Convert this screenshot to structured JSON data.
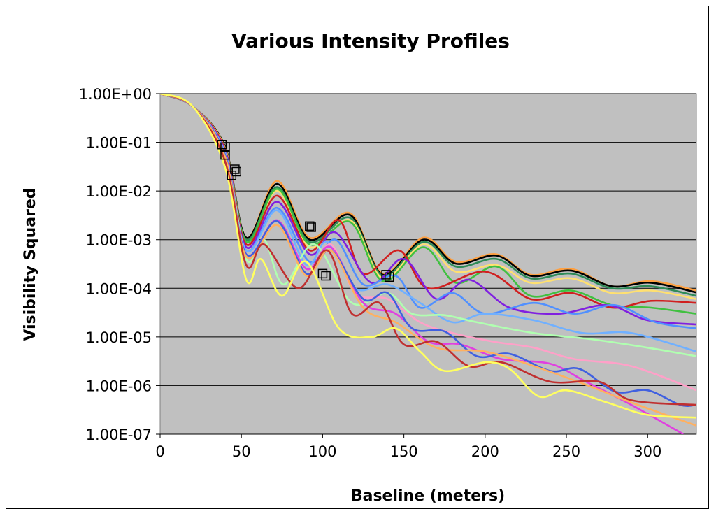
{
  "chart_data": {
    "type": "line",
    "title": "Various Intensity Profiles",
    "xlabel": "Baseline (meters)",
    "ylabel": "Visibility Squared",
    "xlim": [
      0,
      330
    ],
    "ylim": [
      1e-07,
      1
    ],
    "y_scale": "log",
    "grid": "horizontal",
    "legend": "none",
    "plot_background": "#c0c0c0",
    "x_ticks": [
      "0",
      "50",
      "100",
      "150",
      "200",
      "250",
      "300"
    ],
    "x_tick_values": [
      0,
      50,
      100,
      150,
      200,
      250,
      300
    ],
    "y_ticks": [
      "1.00E+00",
      "1.00E-01",
      "1.00E-02",
      "1.00E-03",
      "1.00E-04",
      "1.00E-05",
      "1.00E-06",
      "1.00E-07"
    ],
    "y_tick_values": [
      1,
      0.1,
      0.01,
      0.001,
      0.0001,
      1e-05,
      1e-06,
      1e-07
    ],
    "series": [
      {
        "color": "#ffa040",
        "points": [
          [
            0,
            1
          ],
          [
            20,
            0.55
          ],
          [
            40,
            0.08
          ],
          [
            53,
            0.0011
          ],
          [
            72,
            0.016
          ],
          [
            92,
            0.0011
          ],
          [
            117,
            0.0035
          ],
          [
            137,
            0.0002
          ],
          [
            162,
            0.0011
          ],
          [
            182,
            0.00035
          ],
          [
            207,
            0.0005
          ],
          [
            228,
            0.00019
          ],
          [
            253,
            0.00025
          ],
          [
            278,
            0.00011
          ],
          [
            302,
            0.00014
          ],
          [
            330,
            9e-05
          ]
        ]
      },
      {
        "color": "#000000",
        "points": [
          [
            0,
            1
          ],
          [
            20,
            0.55
          ],
          [
            40,
            0.08
          ],
          [
            53,
            0.0011
          ],
          [
            72,
            0.014
          ],
          [
            92,
            0.001
          ],
          [
            117,
            0.0032
          ],
          [
            137,
            0.00019
          ],
          [
            162,
            0.001
          ],
          [
            182,
            0.00032
          ],
          [
            207,
            0.00047
          ],
          [
            228,
            0.00018
          ],
          [
            253,
            0.00023
          ],
          [
            278,
            0.00011
          ],
          [
            302,
            0.00013
          ],
          [
            330,
            8.2e-05
          ]
        ]
      },
      {
        "color": "#2e8b57",
        "points": [
          [
            0,
            1
          ],
          [
            20,
            0.55
          ],
          [
            40,
            0.075
          ],
          [
            53,
            0.001
          ],
          [
            72,
            0.012
          ],
          [
            92,
            0.0009
          ],
          [
            117,
            0.0028
          ],
          [
            137,
            0.00018
          ],
          [
            162,
            0.0009
          ],
          [
            182,
            0.00028
          ],
          [
            207,
            0.0004
          ],
          [
            228,
            0.00016
          ],
          [
            253,
            0.0002
          ],
          [
            278,
            0.0001
          ],
          [
            302,
            0.00011
          ],
          [
            330,
            7e-05
          ]
        ]
      },
      {
        "color": "#ffe070",
        "points": [
          [
            0,
            1
          ],
          [
            20,
            0.55
          ],
          [
            40,
            0.075
          ],
          [
            53,
            0.0009
          ],
          [
            72,
            0.01
          ],
          [
            92,
            0.0007
          ],
          [
            117,
            0.0025
          ],
          [
            137,
            0.00016
          ],
          [
            162,
            0.0008
          ],
          [
            182,
            0.00022
          ],
          [
            207,
            0.0003
          ],
          [
            228,
            0.00013
          ],
          [
            253,
            0.00016
          ],
          [
            278,
            8e-05
          ],
          [
            302,
            9e-05
          ],
          [
            330,
            6e-05
          ]
        ]
      },
      {
        "color": "#40c040",
        "points": [
          [
            0,
            1
          ],
          [
            20,
            0.55
          ],
          [
            40,
            0.07
          ],
          [
            53,
            0.0009
          ],
          [
            72,
            0.011
          ],
          [
            92,
            0.0008
          ],
          [
            117,
            0.0023
          ],
          [
            137,
            0.00014
          ],
          [
            162,
            0.0007
          ],
          [
            182,
            0.00013
          ],
          [
            207,
            0.00028
          ],
          [
            228,
            7e-05
          ],
          [
            253,
            9e-05
          ],
          [
            278,
            4.5e-05
          ],
          [
            302,
            4e-05
          ],
          [
            330,
            3e-05
          ]
        ]
      },
      {
        "color": "#d02020",
        "points": [
          [
            0,
            1
          ],
          [
            20,
            0.55
          ],
          [
            40,
            0.07
          ],
          [
            53,
            0.0008
          ],
          [
            72,
            0.008
          ],
          [
            92,
            0.0006
          ],
          [
            110,
            0.0025
          ],
          [
            125,
            0.0002
          ],
          [
            147,
            0.0006
          ],
          [
            165,
            0.0001
          ],
          [
            200,
            0.00022
          ],
          [
            228,
            6e-05
          ],
          [
            253,
            8e-05
          ],
          [
            278,
            4e-05
          ],
          [
            302,
            5.5e-05
          ],
          [
            330,
            5e-05
          ]
        ]
      },
      {
        "color": "#8020e0",
        "points": [
          [
            0,
            1
          ],
          [
            20,
            0.55
          ],
          [
            40,
            0.065
          ],
          [
            53,
            0.0007
          ],
          [
            72,
            0.006
          ],
          [
            92,
            0.0005
          ],
          [
            108,
            0.0014
          ],
          [
            130,
            0.00013
          ],
          [
            150,
            0.0004
          ],
          [
            170,
            6e-05
          ],
          [
            190,
            0.00015
          ],
          [
            215,
            4e-05
          ],
          [
            245,
            3e-05
          ],
          [
            275,
            4.5e-05
          ],
          [
            300,
            2.2e-05
          ],
          [
            330,
            1.8e-05
          ]
        ]
      },
      {
        "color": "#5090ff",
        "points": [
          [
            0,
            1
          ],
          [
            20,
            0.55
          ],
          [
            40,
            0.06
          ],
          [
            53,
            0.0006
          ],
          [
            72,
            0.0045
          ],
          [
            92,
            0.00035
          ],
          [
            108,
            0.001
          ],
          [
            125,
            0.00012
          ],
          [
            145,
            0.00018
          ],
          [
            160,
            4e-05
          ],
          [
            180,
            8e-05
          ],
          [
            200,
            3e-05
          ],
          [
            230,
            5e-05
          ],
          [
            255,
            3e-05
          ],
          [
            280,
            4.5e-05
          ],
          [
            305,
            2e-05
          ],
          [
            330,
            1.5e-05
          ]
        ]
      },
      {
        "color": "#70b0ff",
        "points": [
          [
            0,
            1
          ],
          [
            20,
            0.55
          ],
          [
            40,
            0.06
          ],
          [
            53,
            0.0006
          ],
          [
            72,
            0.004
          ],
          [
            90,
            0.0003
          ],
          [
            103,
            0.0009
          ],
          [
            120,
            0.0001
          ],
          [
            140,
            0.00012
          ],
          [
            160,
            5e-05
          ],
          [
            180,
            2e-05
          ],
          [
            200,
            3e-05
          ],
          [
            230,
            2.2e-05
          ],
          [
            260,
            1.2e-05
          ],
          [
            290,
            1.2e-05
          ],
          [
            330,
            5e-06
          ]
        ]
      },
      {
        "color": "#b0ffb0",
        "points": [
          [
            0,
            1
          ],
          [
            20,
            0.55
          ],
          [
            40,
            0.055
          ],
          [
            53,
            0.0004
          ],
          [
            64,
            0.001
          ],
          [
            76,
            0.00012
          ],
          [
            95,
            0.0008
          ],
          [
            118,
            5e-05
          ],
          [
            140,
            8e-05
          ],
          [
            155,
            3e-05
          ],
          [
            175,
            2.8e-05
          ],
          [
            195,
            2e-05
          ],
          [
            230,
            1.2e-05
          ],
          [
            265,
            9e-06
          ],
          [
            300,
            6e-06
          ],
          [
            330,
            4e-06
          ]
        ]
      },
      {
        "color": "#ffa0c8",
        "points": [
          [
            0,
            1
          ],
          [
            20,
            0.55
          ],
          [
            40,
            0.055
          ],
          [
            53,
            0.0005
          ],
          [
            72,
            0.002
          ],
          [
            90,
            0.0002
          ],
          [
            105,
            0.0008
          ],
          [
            120,
            8e-05
          ],
          [
            140,
            6e-05
          ],
          [
            160,
            2e-05
          ],
          [
            180,
            1.2e-05
          ],
          [
            205,
            8e-06
          ],
          [
            230,
            6e-06
          ],
          [
            255,
            3.5e-06
          ],
          [
            290,
            2.5e-06
          ],
          [
            330,
            8e-07
          ]
        ]
      },
      {
        "color": "#e040e0",
        "points": [
          [
            0,
            1
          ],
          [
            20,
            0.55
          ],
          [
            40,
            0.05
          ],
          [
            53,
            0.0005
          ],
          [
            72,
            0.0025
          ],
          [
            90,
            0.00025
          ],
          [
            105,
            0.0007
          ],
          [
            125,
            5e-05
          ],
          [
            145,
            3e-05
          ],
          [
            165,
            8e-06
          ],
          [
            185,
            7e-06
          ],
          [
            210,
            3.5e-06
          ],
          [
            240,
            2.8e-06
          ],
          [
            262,
            1.2e-06
          ],
          [
            290,
            4e-07
          ],
          [
            322,
            1e-07
          ]
        ]
      },
      {
        "color": "#4060e0",
        "points": [
          [
            0,
            1
          ],
          [
            20,
            0.55
          ],
          [
            40,
            0.055
          ],
          [
            53,
            0.0005
          ],
          [
            72,
            0.0024
          ],
          [
            90,
            0.0002
          ],
          [
            105,
            0.0006
          ],
          [
            125,
            6e-05
          ],
          [
            140,
            8e-05
          ],
          [
            155,
            1.5e-05
          ],
          [
            175,
            1.3e-05
          ],
          [
            195,
            4e-06
          ],
          [
            215,
            4.5e-06
          ],
          [
            240,
            2e-06
          ],
          [
            258,
            2.2e-06
          ],
          [
            280,
            7.5e-07
          ],
          [
            300,
            8e-07
          ],
          [
            320,
            4e-07
          ],
          [
            330,
            4e-07
          ]
        ]
      },
      {
        "color": "#ffb060",
        "points": [
          [
            0,
            1
          ],
          [
            20,
            0.55
          ],
          [
            40,
            0.05
          ],
          [
            53,
            0.00045
          ],
          [
            72,
            0.002
          ],
          [
            90,
            0.00018
          ],
          [
            105,
            0.0006
          ],
          [
            125,
            4e-05
          ],
          [
            145,
            2e-05
          ],
          [
            170,
            6e-06
          ],
          [
            200,
            5e-06
          ],
          [
            230,
            2.5e-06
          ],
          [
            260,
            1.1e-06
          ],
          [
            290,
            4.5e-07
          ],
          [
            330,
            1.5e-07
          ]
        ]
      },
      {
        "color": "#c03030",
        "points": [
          [
            0,
            1
          ],
          [
            20,
            0.55
          ],
          [
            40,
            0.04
          ],
          [
            53,
            0.0003
          ],
          [
            64,
            0.0008
          ],
          [
            85,
            0.0001
          ],
          [
            103,
            0.0006
          ],
          [
            118,
            3e-05
          ],
          [
            135,
            5e-05
          ],
          [
            150,
            7e-06
          ],
          [
            170,
            8e-06
          ],
          [
            190,
            2.5e-06
          ],
          [
            210,
            3e-06
          ],
          [
            240,
            1.2e-06
          ],
          [
            270,
            1.2e-06
          ],
          [
            290,
            5e-07
          ],
          [
            330,
            4e-07
          ]
        ]
      },
      {
        "color": "#ffff60",
        "points": [
          [
            0,
            1
          ],
          [
            20,
            0.55
          ],
          [
            40,
            0.03
          ],
          [
            53,
            0.00015
          ],
          [
            62,
            0.0004
          ],
          [
            75,
            7e-05
          ],
          [
            90,
            0.00035
          ],
          [
            110,
            1.5e-05
          ],
          [
            130,
            1e-05
          ],
          [
            145,
            1.5e-05
          ],
          [
            160,
            5e-06
          ],
          [
            175,
            2e-06
          ],
          [
            200,
            3e-06
          ],
          [
            215,
            2.2e-06
          ],
          [
            233,
            6e-07
          ],
          [
            250,
            8e-07
          ],
          [
            275,
            4.5e-07
          ],
          [
            300,
            2.5e-07
          ],
          [
            330,
            2.2e-07
          ]
        ]
      }
    ],
    "markers": [
      [
        38,
        0.09
      ],
      [
        40,
        0.08
      ],
      [
        40,
        0.055
      ],
      [
        46,
        0.028
      ],
      [
        47,
        0.025
      ],
      [
        44,
        0.021
      ],
      [
        92,
        0.0019
      ],
      [
        93,
        0.0018
      ],
      [
        100,
        0.0002
      ],
      [
        102,
        0.00018
      ],
      [
        139,
        0.00019
      ],
      [
        141,
        0.00017
      ]
    ]
  }
}
